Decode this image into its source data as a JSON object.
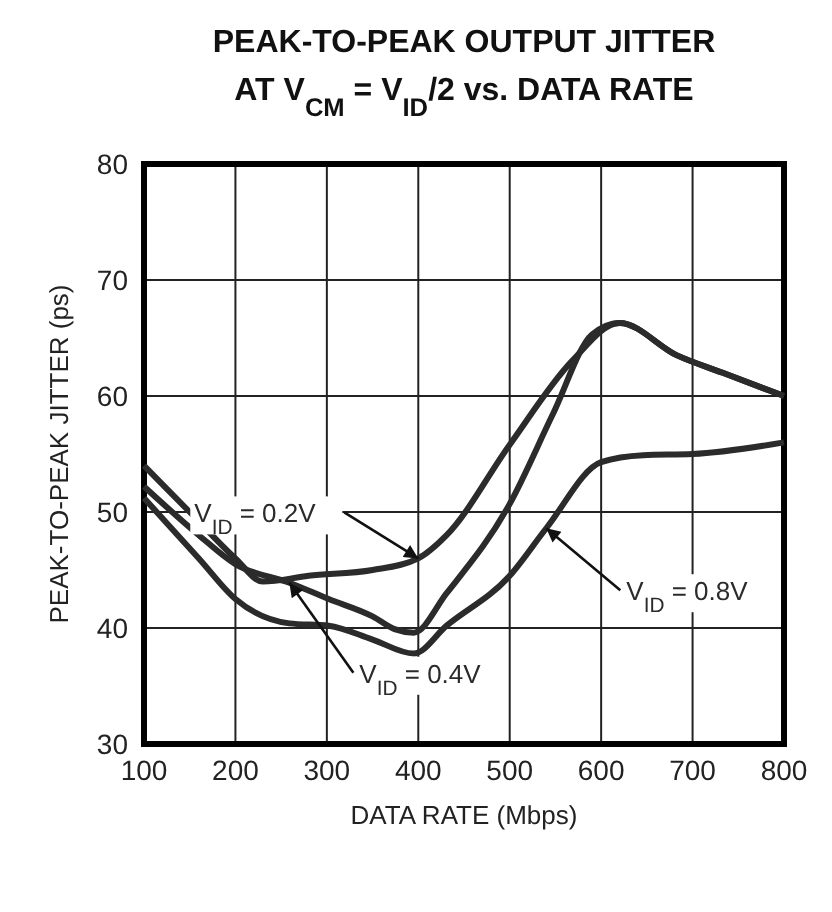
{
  "chart_data": {
    "type": "line",
    "title": "PEAK-TO-PEAK OUTPUT JITTER\nAT V$_{CM}$ = V$_{ID}$/2 vs. DATA RATE",
    "xlabel": "DATA RATE (Mbps)",
    "ylabel": "PEAK-TO-PEAK JITTER (ps)",
    "xlim": [
      100,
      800
    ],
    "xticks": [
      100,
      200,
      300,
      400,
      500,
      600,
      700,
      800
    ],
    "ylim": [
      30,
      80
    ],
    "yticks": [
      30,
      40,
      50,
      60,
      70,
      80
    ],
    "grid": true,
    "line_style": "solid",
    "marker": "none",
    "series": [
      {
        "color": "#2b2b2b",
        "x": [
          100,
          150,
          200,
          230,
          280,
          350,
          400,
          431,
          500,
          568,
          620,
          683,
          733,
          800
        ],
        "values": [
          54,
          50,
          46,
          44,
          44.5,
          45,
          46,
          48,
          55.8,
          63,
          66.3,
          63.5,
          62,
          60
        ]
      },
      {
        "color": "#2b2b2b",
        "x": [
          100,
          160,
          200,
          259,
          302,
          350,
          374,
          395,
          431,
          500,
          547,
          590,
          620,
          683,
          733,
          800
        ],
        "values": [
          52.2,
          48,
          45.5,
          43.9,
          42.5,
          41,
          39.9,
          39.6,
          43,
          50.7,
          58.4,
          65.3,
          66.3,
          63.5,
          62,
          60
        ]
      },
      {
        "color": "#2b2b2b",
        "x": [
          100,
          160,
          200,
          259,
          302,
          350,
          395,
          431,
          500,
          540,
          600,
          646,
          700,
          800
        ],
        "values": [
          51.2,
          46,
          42.5,
          40.4,
          40.2,
          39,
          37.8,
          40.2,
          44.5,
          48.6,
          54.3,
          54.9,
          55,
          56
        ]
      }
    ],
    "annotations": [
      {
        "text": "V$_{ID}$ = 0.2V",
        "x": 400,
        "y": 46
      },
      {
        "text": "V$_{ID}$ = 0.4V",
        "x": 259,
        "y": 43.9
      },
      {
        "text": "V$_{ID}$ = 0.8V",
        "x": 540,
        "y": 48.6
      }
    ]
  }
}
